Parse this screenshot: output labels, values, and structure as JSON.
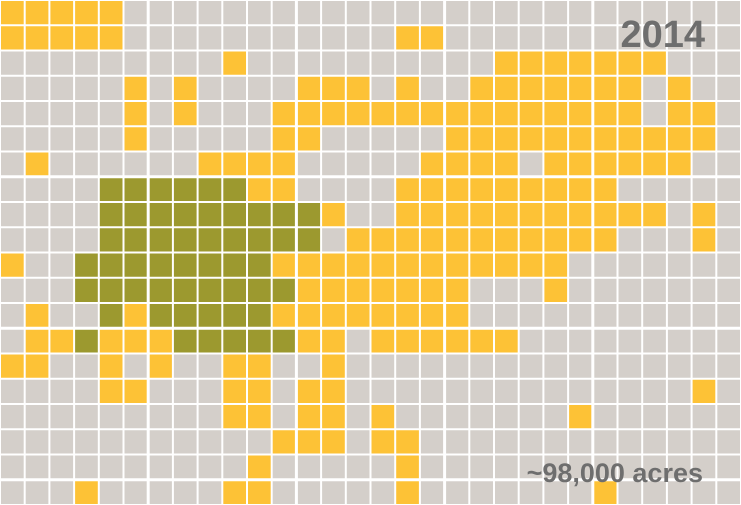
{
  "year": "2014",
  "area_label": "~98,000 acres"
}
